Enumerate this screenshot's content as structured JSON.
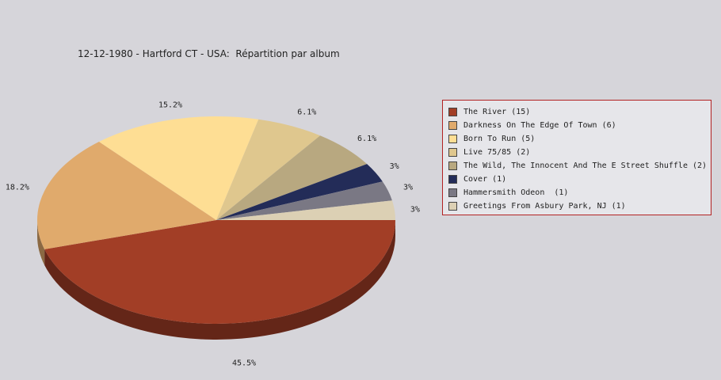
{
  "chart_data": {
    "type": "pie",
    "title": "12-12-1980 - Hartford CT - USA:  Répartition par album",
    "legend_position": "right",
    "slices": [
      {
        "label": "The River (15)",
        "value": 15,
        "percent_label": "45.5%",
        "color": "#a23e26"
      },
      {
        "label": "Darkness On The Edge Of Town (6)",
        "value": 6,
        "percent_label": "18.2%",
        "color": "#e0aa6c"
      },
      {
        "label": "Born To Run (5)",
        "value": 5,
        "percent_label": "15.2%",
        "color": "#fede94"
      },
      {
        "label": "Live 75/85 (2)",
        "value": 2,
        "percent_label": "6.1%",
        "color": "#dfc78e"
      },
      {
        "label": "The Wild, The Innocent And The E Street Shuffle (2)",
        "value": 2,
        "percent_label": "6.1%",
        "color": "#b8a880"
      },
      {
        "label": "Cover (1)",
        "value": 1,
        "percent_label": "3%",
        "color": "#232c58"
      },
      {
        "label": "Hammersmith Odeon  (1)",
        "value": 1,
        "percent_label": "3%",
        "color": "#7a7884"
      },
      {
        "label": "Greetings From Asbury Park, NJ (1)",
        "value": 1,
        "percent_label": "3%",
        "color": "#dcd0b4"
      }
    ]
  }
}
